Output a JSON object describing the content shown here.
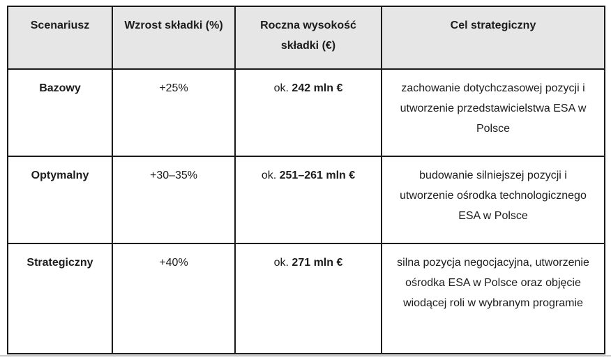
{
  "table": {
    "columns": [
      {
        "label": "Scenariusz"
      },
      {
        "label": "Wzrost składki (%)"
      },
      {
        "label": "Roczna wysokość składki (€)"
      },
      {
        "label": "Cel strategiczny"
      }
    ],
    "rows": [
      {
        "scenario": "Bazowy",
        "growth": "+25%",
        "amount_prefix": "ok.",
        "amount": "242 mln €",
        "goal": "zachowanie dotychczasowej pozycji i utworzenie przedstawicielstwa ESA w Polsce"
      },
      {
        "scenario": "Optymalny",
        "growth": "+30–35%",
        "amount_prefix": "ok.",
        "amount": "251–261 mln €",
        "goal": "budowanie silniejszej pozycji i utworzenie ośrodka technologicznego ESA w Polsce"
      },
      {
        "scenario": "Strategiczny",
        "growth": "+40%",
        "amount_prefix": "ok.",
        "amount": "271 mln €",
        "goal": "silna pozycja negocjacyjna, utworzenie ośrodka ESA w Polsce oraz objęcie wiodącej roli w wybranym programie"
      }
    ]
  },
  "colors": {
    "header_background": "#e6e6e6",
    "border": "#1a1a1a",
    "text": "#1c1c1c",
    "bottom_rule": "#c9c9c9"
  }
}
